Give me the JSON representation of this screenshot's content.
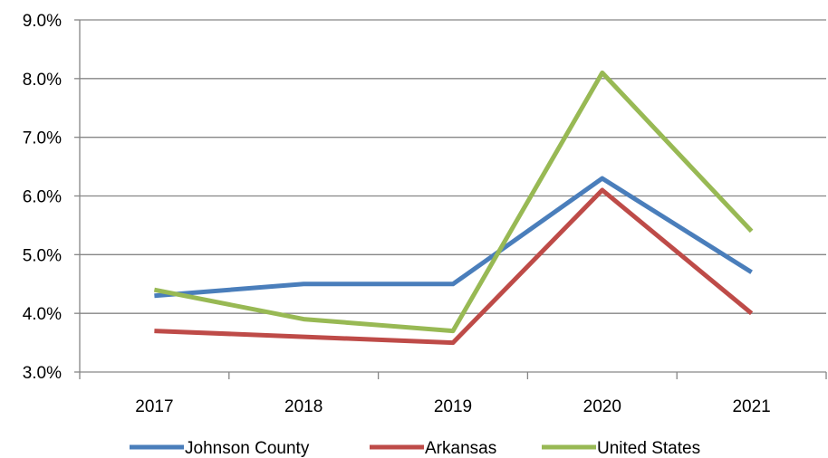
{
  "chart_data": {
    "type": "line",
    "title": "",
    "xlabel": "",
    "ylabel": "",
    "categories": [
      "2017",
      "2018",
      "2019",
      "2020",
      "2021"
    ],
    "ylim": [
      3.0,
      9.0
    ],
    "yticks": [
      3.0,
      4.0,
      5.0,
      6.0,
      7.0,
      8.0,
      9.0
    ],
    "ytick_labels": [
      "3.0%",
      "4.0%",
      "5.0%",
      "6.0%",
      "7.0%",
      "8.0%",
      "9.0%"
    ],
    "grid": "horizontal",
    "legend_position": "bottom",
    "series": [
      {
        "name": "Johnson County",
        "color": "#4a7ebb",
        "values": [
          4.3,
          4.5,
          4.5,
          6.3,
          4.7
        ]
      },
      {
        "name": "Arkansas",
        "color": "#be4b48",
        "values": [
          3.7,
          3.6,
          3.5,
          6.1,
          4.0
        ]
      },
      {
        "name": "United States",
        "color": "#98b954",
        "values": [
          4.4,
          3.9,
          3.7,
          8.1,
          5.4
        ]
      }
    ]
  }
}
